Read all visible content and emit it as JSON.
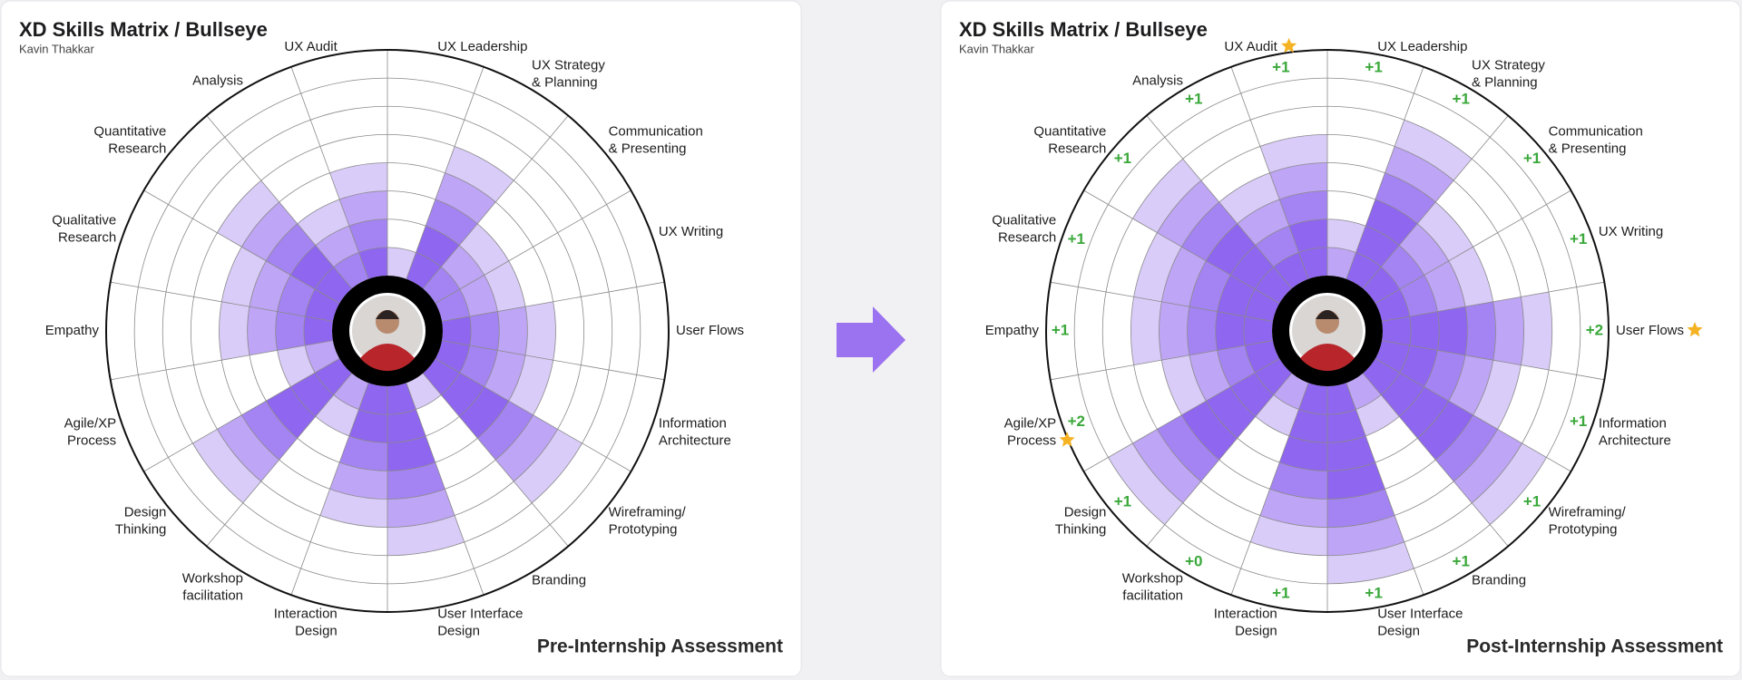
{
  "chart_data": [
    {
      "type": "radial_bar",
      "title": "XD Skills Matrix / Bullseye",
      "subtitle": "Kavin Thakkar",
      "caption": "Pre-Internship Assessment",
      "categories": [
        "UX Leadership",
        "UX Strategy\n& Planning",
        "Communication\n& Presenting",
        "UX Writing",
        "User Flows",
        "Information\nArchitecture",
        "Wireframing/\nPrototyping",
        "Branding",
        "User Interface\nDesign",
        "Interaction\nDesign",
        "Workshop\nfacilitation",
        "Design\nThinking",
        "Agile/XP\nProcess",
        "Empathy",
        "Qualitative\nResearch",
        "Quantitative\nResearch",
        "Analysis",
        "UX Audit"
      ],
      "values": [
        1,
        5,
        3,
        3,
        4,
        4,
        6,
        1,
        6,
        5,
        2,
        6,
        2,
        4,
        4,
        5,
        3,
        4
      ],
      "rlim": [
        0,
        7
      ],
      "colors": [
        "#d9ccf8",
        "#bea5f5",
        "#a484f2",
        "#8f66ef"
      ]
    },
    {
      "type": "radial_bar",
      "title": "XD Skills Matrix / Bullseye",
      "subtitle": "Kavin Thakkar",
      "caption": "Post-Internship Assessment",
      "categories": [
        "UX Leadership",
        "UX Strategy\n& Planning",
        "Communication\n& Presenting",
        "UX Writing",
        "User Flows",
        "Information\nArchitecture",
        "Wireframing/\nPrototyping",
        "Branding",
        "User Interface\nDesign",
        "Interaction\nDesign",
        "Workshop\nfacilitation",
        "Design\nThinking",
        "Agile/XP\nProcess",
        "Empathy",
        "Qualitative\nResearch",
        "Quantitative\nResearch",
        "Analysis",
        "UX Audit"
      ],
      "values": [
        2,
        6,
        4,
        4,
        6,
        5,
        7,
        2,
        7,
        6,
        2,
        7,
        4,
        5,
        5,
        6,
        4,
        5
      ],
      "increments": [
        1,
        1,
        1,
        1,
        2,
        1,
        1,
        1,
        1,
        1,
        0,
        1,
        2,
        1,
        1,
        1,
        1,
        1
      ],
      "increment_labels": [
        "+1",
        "+1",
        "+1",
        "+1",
        "+2",
        "+1",
        "+1",
        "+1",
        "+1",
        "+1",
        "+0",
        "+1",
        "+2",
        "+1",
        "+1",
        "+1",
        "+1",
        "+1"
      ],
      "increment_color": "#3aa83a",
      "starred": [
        false,
        false,
        false,
        false,
        true,
        false,
        false,
        false,
        false,
        false,
        false,
        false,
        true,
        false,
        false,
        false,
        false,
        true
      ],
      "star_color": "#f5b324",
      "rlim": [
        0,
        7
      ],
      "colors": [
        "#d9ccf8",
        "#bea5f5",
        "#a484f2",
        "#8f66ef"
      ]
    }
  ]
}
